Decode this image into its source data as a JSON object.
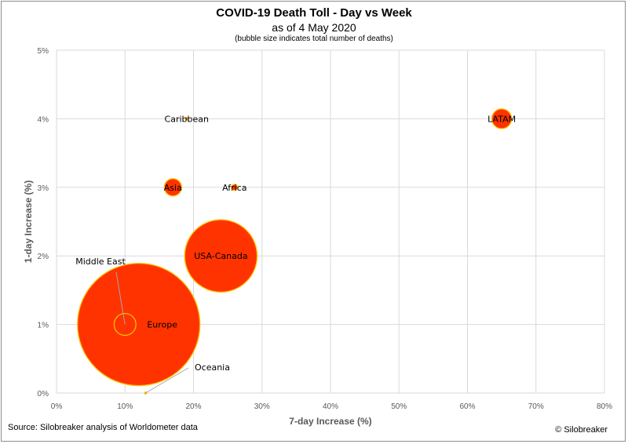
{
  "chart_data": {
    "type": "bubble",
    "title": "COVID-19 Death Toll - Day vs Week",
    "subtitle": "as of 4 May 2020",
    "note": "(bubble size indicates total number of deaths)",
    "xlabel": "7-day Increase (%)",
    "ylabel": "1-day Increase (%)",
    "xlim": [
      0,
      80
    ],
    "ylim": [
      0,
      5
    ],
    "x_ticks": [
      "0%",
      "10%",
      "20%",
      "30%",
      "40%",
      "50%",
      "60%",
      "70%",
      "80%"
    ],
    "y_ticks": [
      "0%",
      "1%",
      "2%",
      "3%",
      "4%",
      "5%"
    ],
    "grid": true,
    "bubble_color": "#ff3300",
    "bubble_edge": "#ffc000",
    "points": [
      {
        "label": "Europe",
        "x": 12,
        "y": 1.0,
        "size": 1.0
      },
      {
        "label": "USA-Canada",
        "x": 24,
        "y": 2.0,
        "size": 0.35
      },
      {
        "label": "Middle East",
        "x": 10,
        "y": 1.0,
        "size": 0.032
      },
      {
        "label": "LATAM",
        "x": 65,
        "y": 4.0,
        "size": 0.026
      },
      {
        "label": "Asia",
        "x": 17,
        "y": 3.0,
        "size": 0.02
      },
      {
        "label": "Africa",
        "x": 26,
        "y": 3.0,
        "size": 0.0025
      },
      {
        "label": "Caribbean",
        "x": 19,
        "y": 4.0,
        "size": 0.0005
      },
      {
        "label": "Oceania",
        "x": 13,
        "y": 0.0,
        "size": 0.0001
      }
    ]
  },
  "footer": {
    "source": "Source: Silobreaker analysis of Worldometer data",
    "copyright": "© Silobreaker"
  }
}
